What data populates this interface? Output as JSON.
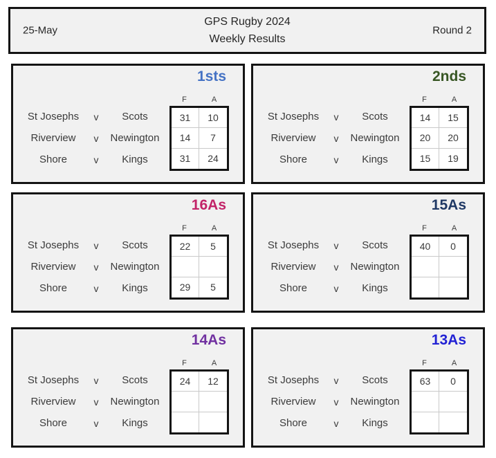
{
  "header": {
    "date": "25-May",
    "title_line1": "GPS Rugby 2024",
    "title_line2": "Weekly Results",
    "round": "Round 2"
  },
  "score_columns": {
    "for": "F",
    "against": "A"
  },
  "panels": [
    {
      "grade": "1sts",
      "color": "#4472C4",
      "matches": [
        {
          "home": "St Josephs",
          "vs": "v",
          "away": "Scots",
          "for": "31",
          "against": "10"
        },
        {
          "home": "Riverview",
          "vs": "v",
          "away": "Newington",
          "for": "14",
          "against": "7"
        },
        {
          "home": "Shore",
          "vs": "v",
          "away": "Kings",
          "for": "31",
          "against": "24"
        }
      ]
    },
    {
      "grade": "2nds",
      "color": "#375623",
      "matches": [
        {
          "home": "St Josephs",
          "vs": "v",
          "away": "Scots",
          "for": "14",
          "against": "15"
        },
        {
          "home": "Riverview",
          "vs": "v",
          "away": "Newington",
          "for": "20",
          "against": "20"
        },
        {
          "home": "Shore",
          "vs": "v",
          "away": "Kings",
          "for": "15",
          "against": "19"
        }
      ]
    },
    {
      "grade": "16As",
      "color": "#C22368",
      "matches": [
        {
          "home": "St Josephs",
          "vs": "v",
          "away": "Scots",
          "for": "22",
          "against": "5"
        },
        {
          "home": "Riverview",
          "vs": "v",
          "away": "Newington",
          "for": "",
          "against": ""
        },
        {
          "home": "Shore",
          "vs": "v",
          "away": "Kings",
          "for": "29",
          "against": "5"
        }
      ]
    },
    {
      "grade": "15As",
      "color": "#1F3864",
      "matches": [
        {
          "home": "St Josephs",
          "vs": "v",
          "away": "Scots",
          "for": "40",
          "against": "0"
        },
        {
          "home": "Riverview",
          "vs": "v",
          "away": "Newington",
          "for": "",
          "against": ""
        },
        {
          "home": "Shore",
          "vs": "v",
          "away": "Kings",
          "for": "",
          "against": ""
        }
      ]
    },
    {
      "grade": "14As",
      "color": "#7030A0",
      "matches": [
        {
          "home": "St Josephs",
          "vs": "v",
          "away": "Scots",
          "for": "24",
          "against": "12"
        },
        {
          "home": "Riverview",
          "vs": "v",
          "away": "Newington",
          "for": "",
          "against": ""
        },
        {
          "home": "Shore",
          "vs": "v",
          "away": "Kings",
          "for": "",
          "against": ""
        }
      ]
    },
    {
      "grade": "13As",
      "color": "#2222D4",
      "matches": [
        {
          "home": "St Josephs",
          "vs": "v",
          "away": "Scots",
          "for": "63",
          "against": "0"
        },
        {
          "home": "Riverview",
          "vs": "v",
          "away": "Newington",
          "for": "",
          "against": ""
        },
        {
          "home": "Shore",
          "vs": "v",
          "away": "Kings",
          "for": "",
          "against": ""
        }
      ]
    }
  ]
}
